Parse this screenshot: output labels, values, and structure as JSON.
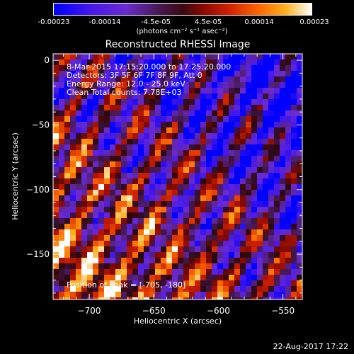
{
  "colorbar": {
    "tick_labels": [
      "-0.00023",
      "-0.00014",
      "-4.5e-05",
      "4.5e-05",
      "0.00014",
      "0.00023"
    ],
    "tick_values": [
      -0.00023,
      -0.00014,
      -4.5e-05,
      4.5e-05,
      0.00014,
      0.00023
    ],
    "range": [
      -0.00023,
      0.00023
    ],
    "unit_label": "(photons cm⁻² s⁻¹ asec⁻²)",
    "colors": [
      "#0000ff",
      "#6a2bd0",
      "#3a0a12",
      "#d02000",
      "#ff9a10",
      "#ffffff"
    ]
  },
  "chart_data": {
    "type": "heatmap",
    "title": "Reconstructed RHESSI Image",
    "xlabel": "Heliocentric X (arcsec)",
    "ylabel": "Heliocentric Y (arcsec)",
    "xlim": [
      -728,
      -535
    ],
    "ylim": [
      -185,
      5
    ],
    "x_ticks": [
      -700,
      -650,
      -600,
      -550
    ],
    "y_ticks": [
      0,
      -50,
      -100,
      -150
    ],
    "x_tick_labels": [
      "−700",
      "−650",
      "−600",
      "−550"
    ],
    "y_tick_labels": [
      "0",
      "−50",
      "−100",
      "−150"
    ],
    "annotations": [
      "8-Mar-2015 17:15:20.000 to 17:25:20.000",
      "Detectors: 3F 5F 6F 7F 8F 9F, Att 0",
      "Energy Range: 12.0 - 25.0 keV",
      "Clean    Total counts: 7.78E+03"
    ],
    "peak_label": "Position of Peak = [-705, -180]",
    "peak_position": [
      -705,
      -180
    ]
  },
  "footer": {
    "timestamp": "22-Aug-2017 17:22"
  }
}
